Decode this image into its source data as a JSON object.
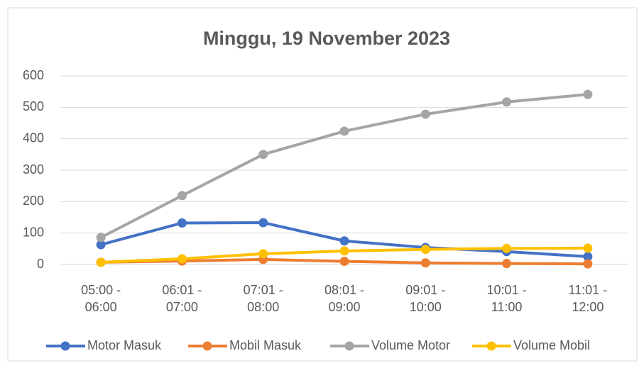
{
  "chart_data": {
    "type": "line",
    "title": "Minggu, 19 November 2023",
    "categories": [
      "05:00 - 06:00",
      "06:01 - 07:00",
      "07:01 - 08:00",
      "08:01 - 09:00",
      "09:01 - 10:00",
      "10:01 - 11:00",
      "11:01 - 12:00"
    ],
    "series": [
      {
        "name": "Motor Masuk",
        "color": "#4472c4",
        "values": [
          63,
          132,
          133,
          75,
          54,
          41,
          25
        ]
      },
      {
        "name": "Mobil Masuk",
        "color": "#ed7d31",
        "values": [
          7,
          11,
          16,
          10,
          5,
          3,
          2
        ]
      },
      {
        "name": "Volume Motor",
        "color": "#a5a5a5",
        "values": [
          86,
          219,
          350,
          424,
          478,
          517,
          541
        ]
      },
      {
        "name": "Volume Mobil",
        "color": "#ffc000",
        "values": [
          7,
          18,
          34,
          43,
          48,
          51,
          52
        ]
      }
    ],
    "ylim": [
      0,
      600
    ],
    "yticks": [
      0,
      100,
      200,
      300,
      400,
      500,
      600
    ],
    "grid": true,
    "legend": "bottom"
  }
}
